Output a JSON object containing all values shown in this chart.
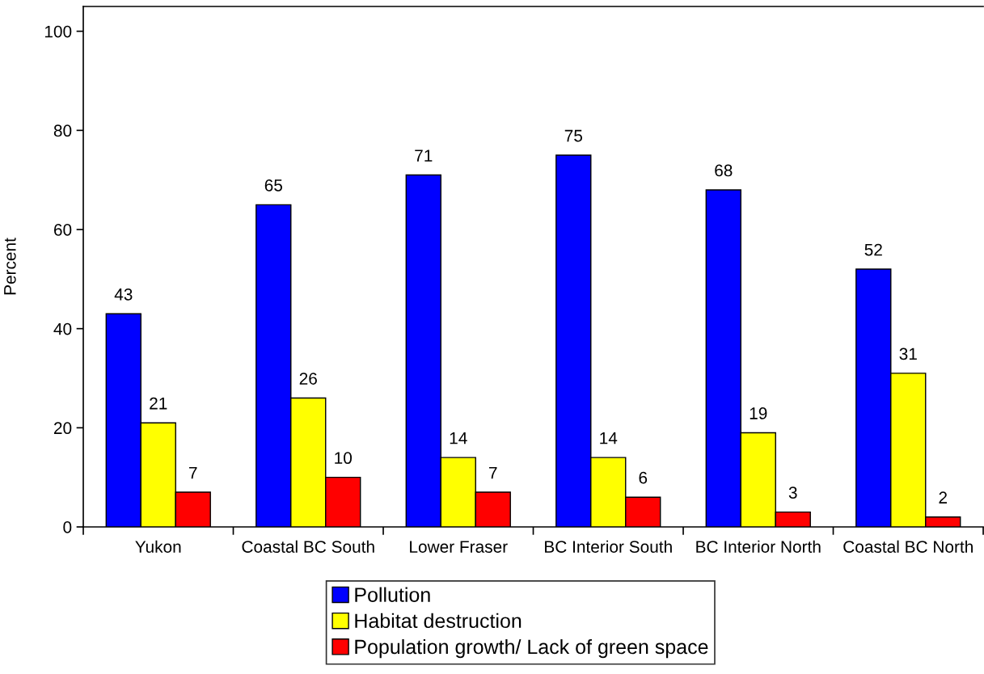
{
  "chart_data": {
    "type": "bar",
    "ylabel": "Percent",
    "categories": [
      "Yukon",
      "Coastal BC South",
      "Lower Fraser",
      "BC Interior South",
      "BC Interior North",
      "Coastal BC North"
    ],
    "series": [
      {
        "name": "Pollution",
        "color": "#0000ff",
        "values": [
          43,
          65,
          71,
          75,
          68,
          52
        ]
      },
      {
        "name": "Habitat destruction",
        "color": "#ffff00",
        "values": [
          21,
          26,
          14,
          14,
          19,
          31
        ]
      },
      {
        "name": "Population growth/ Lack of green space",
        "color": "#ff0000",
        "values": [
          7,
          10,
          7,
          6,
          3,
          2
        ]
      }
    ],
    "ylim": [
      0,
      105
    ],
    "yticks": [
      0,
      20,
      40,
      60,
      80,
      100
    ],
    "grid": false,
    "legend": "bottom",
    "data_labels": true
  }
}
